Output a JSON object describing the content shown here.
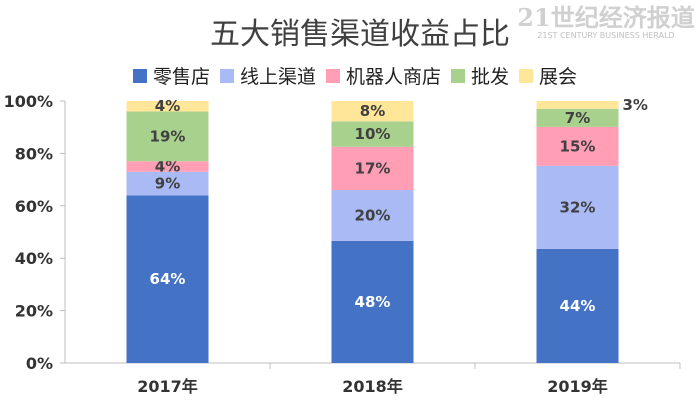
{
  "chart_data": {
    "type": "bar",
    "stacked": true,
    "normalized": true,
    "title": "五大销售渠道收益占比",
    "categories": [
      "2017年",
      "2018年",
      "2019年"
    ],
    "series": [
      {
        "name": "零售店",
        "color": "#4472C4",
        "label_color": "#ffffff",
        "values": [
          64,
          48,
          44
        ]
      },
      {
        "name": "线上渠道",
        "color": "#A9BAF5",
        "label_color": "#404040",
        "values": [
          9,
          20,
          32
        ]
      },
      {
        "name": "机器人商店",
        "color": "#FF9EB5",
        "label_color": "#404040",
        "values": [
          4,
          17,
          15
        ]
      },
      {
        "name": "批发",
        "color": "#A9D18E",
        "label_color": "#404040",
        "values": [
          19,
          10,
          7
        ]
      },
      {
        "name": "展会",
        "color": "#FFE699",
        "label_color": "#404040",
        "values": [
          4,
          8,
          3
        ]
      }
    ],
    "yticks": [
      "0%",
      "20%",
      "40%",
      "60%",
      "80%",
      "100%"
    ],
    "ylim": [
      0,
      100
    ],
    "legend": "top",
    "grid": false
  },
  "watermark": {
    "main": "21世纪经济报道",
    "sub": "21ST CENTURY BUSINESS HERALD"
  }
}
